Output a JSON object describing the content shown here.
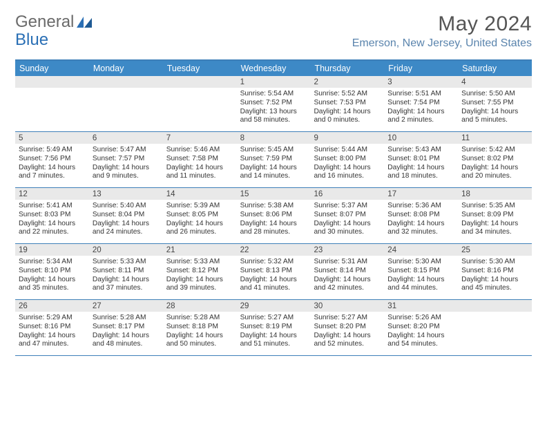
{
  "logo": {
    "part1": "General",
    "part2": "Blue"
  },
  "header": {
    "month_title": "May 2024",
    "location": "Emerson, New Jersey, United States"
  },
  "colors": {
    "header_bg": "#3d89c6",
    "rule": "#3d7fb8",
    "daynum_bg": "#e9e9e9",
    "location_text": "#5a84ad",
    "logo_blue": "#2a6fb5"
  },
  "day_headers": [
    "Sunday",
    "Monday",
    "Tuesday",
    "Wednesday",
    "Thursday",
    "Friday",
    "Saturday"
  ],
  "weeks": [
    [
      {
        "n": "",
        "sunrise": "",
        "sunset": "",
        "daylight": ""
      },
      {
        "n": "",
        "sunrise": "",
        "sunset": "",
        "daylight": ""
      },
      {
        "n": "",
        "sunrise": "",
        "sunset": "",
        "daylight": ""
      },
      {
        "n": "1",
        "sunrise": "Sunrise: 5:54 AM",
        "sunset": "Sunset: 7:52 PM",
        "daylight": "Daylight: 13 hours and 58 minutes."
      },
      {
        "n": "2",
        "sunrise": "Sunrise: 5:52 AM",
        "sunset": "Sunset: 7:53 PM",
        "daylight": "Daylight: 14 hours and 0 minutes."
      },
      {
        "n": "3",
        "sunrise": "Sunrise: 5:51 AM",
        "sunset": "Sunset: 7:54 PM",
        "daylight": "Daylight: 14 hours and 2 minutes."
      },
      {
        "n": "4",
        "sunrise": "Sunrise: 5:50 AM",
        "sunset": "Sunset: 7:55 PM",
        "daylight": "Daylight: 14 hours and 5 minutes."
      }
    ],
    [
      {
        "n": "5",
        "sunrise": "Sunrise: 5:49 AM",
        "sunset": "Sunset: 7:56 PM",
        "daylight": "Daylight: 14 hours and 7 minutes."
      },
      {
        "n": "6",
        "sunrise": "Sunrise: 5:47 AM",
        "sunset": "Sunset: 7:57 PM",
        "daylight": "Daylight: 14 hours and 9 minutes."
      },
      {
        "n": "7",
        "sunrise": "Sunrise: 5:46 AM",
        "sunset": "Sunset: 7:58 PM",
        "daylight": "Daylight: 14 hours and 11 minutes."
      },
      {
        "n": "8",
        "sunrise": "Sunrise: 5:45 AM",
        "sunset": "Sunset: 7:59 PM",
        "daylight": "Daylight: 14 hours and 14 minutes."
      },
      {
        "n": "9",
        "sunrise": "Sunrise: 5:44 AM",
        "sunset": "Sunset: 8:00 PM",
        "daylight": "Daylight: 14 hours and 16 minutes."
      },
      {
        "n": "10",
        "sunrise": "Sunrise: 5:43 AM",
        "sunset": "Sunset: 8:01 PM",
        "daylight": "Daylight: 14 hours and 18 minutes."
      },
      {
        "n": "11",
        "sunrise": "Sunrise: 5:42 AM",
        "sunset": "Sunset: 8:02 PM",
        "daylight": "Daylight: 14 hours and 20 minutes."
      }
    ],
    [
      {
        "n": "12",
        "sunrise": "Sunrise: 5:41 AM",
        "sunset": "Sunset: 8:03 PM",
        "daylight": "Daylight: 14 hours and 22 minutes."
      },
      {
        "n": "13",
        "sunrise": "Sunrise: 5:40 AM",
        "sunset": "Sunset: 8:04 PM",
        "daylight": "Daylight: 14 hours and 24 minutes."
      },
      {
        "n": "14",
        "sunrise": "Sunrise: 5:39 AM",
        "sunset": "Sunset: 8:05 PM",
        "daylight": "Daylight: 14 hours and 26 minutes."
      },
      {
        "n": "15",
        "sunrise": "Sunrise: 5:38 AM",
        "sunset": "Sunset: 8:06 PM",
        "daylight": "Daylight: 14 hours and 28 minutes."
      },
      {
        "n": "16",
        "sunrise": "Sunrise: 5:37 AM",
        "sunset": "Sunset: 8:07 PM",
        "daylight": "Daylight: 14 hours and 30 minutes."
      },
      {
        "n": "17",
        "sunrise": "Sunrise: 5:36 AM",
        "sunset": "Sunset: 8:08 PM",
        "daylight": "Daylight: 14 hours and 32 minutes."
      },
      {
        "n": "18",
        "sunrise": "Sunrise: 5:35 AM",
        "sunset": "Sunset: 8:09 PM",
        "daylight": "Daylight: 14 hours and 34 minutes."
      }
    ],
    [
      {
        "n": "19",
        "sunrise": "Sunrise: 5:34 AM",
        "sunset": "Sunset: 8:10 PM",
        "daylight": "Daylight: 14 hours and 35 minutes."
      },
      {
        "n": "20",
        "sunrise": "Sunrise: 5:33 AM",
        "sunset": "Sunset: 8:11 PM",
        "daylight": "Daylight: 14 hours and 37 minutes."
      },
      {
        "n": "21",
        "sunrise": "Sunrise: 5:33 AM",
        "sunset": "Sunset: 8:12 PM",
        "daylight": "Daylight: 14 hours and 39 minutes."
      },
      {
        "n": "22",
        "sunrise": "Sunrise: 5:32 AM",
        "sunset": "Sunset: 8:13 PM",
        "daylight": "Daylight: 14 hours and 41 minutes."
      },
      {
        "n": "23",
        "sunrise": "Sunrise: 5:31 AM",
        "sunset": "Sunset: 8:14 PM",
        "daylight": "Daylight: 14 hours and 42 minutes."
      },
      {
        "n": "24",
        "sunrise": "Sunrise: 5:30 AM",
        "sunset": "Sunset: 8:15 PM",
        "daylight": "Daylight: 14 hours and 44 minutes."
      },
      {
        "n": "25",
        "sunrise": "Sunrise: 5:30 AM",
        "sunset": "Sunset: 8:16 PM",
        "daylight": "Daylight: 14 hours and 45 minutes."
      }
    ],
    [
      {
        "n": "26",
        "sunrise": "Sunrise: 5:29 AM",
        "sunset": "Sunset: 8:16 PM",
        "daylight": "Daylight: 14 hours and 47 minutes."
      },
      {
        "n": "27",
        "sunrise": "Sunrise: 5:28 AM",
        "sunset": "Sunset: 8:17 PM",
        "daylight": "Daylight: 14 hours and 48 minutes."
      },
      {
        "n": "28",
        "sunrise": "Sunrise: 5:28 AM",
        "sunset": "Sunset: 8:18 PM",
        "daylight": "Daylight: 14 hours and 50 minutes."
      },
      {
        "n": "29",
        "sunrise": "Sunrise: 5:27 AM",
        "sunset": "Sunset: 8:19 PM",
        "daylight": "Daylight: 14 hours and 51 minutes."
      },
      {
        "n": "30",
        "sunrise": "Sunrise: 5:27 AM",
        "sunset": "Sunset: 8:20 PM",
        "daylight": "Daylight: 14 hours and 52 minutes."
      },
      {
        "n": "31",
        "sunrise": "Sunrise: 5:26 AM",
        "sunset": "Sunset: 8:20 PM",
        "daylight": "Daylight: 14 hours and 54 minutes."
      },
      {
        "n": "",
        "sunrise": "",
        "sunset": "",
        "daylight": ""
      }
    ]
  ]
}
